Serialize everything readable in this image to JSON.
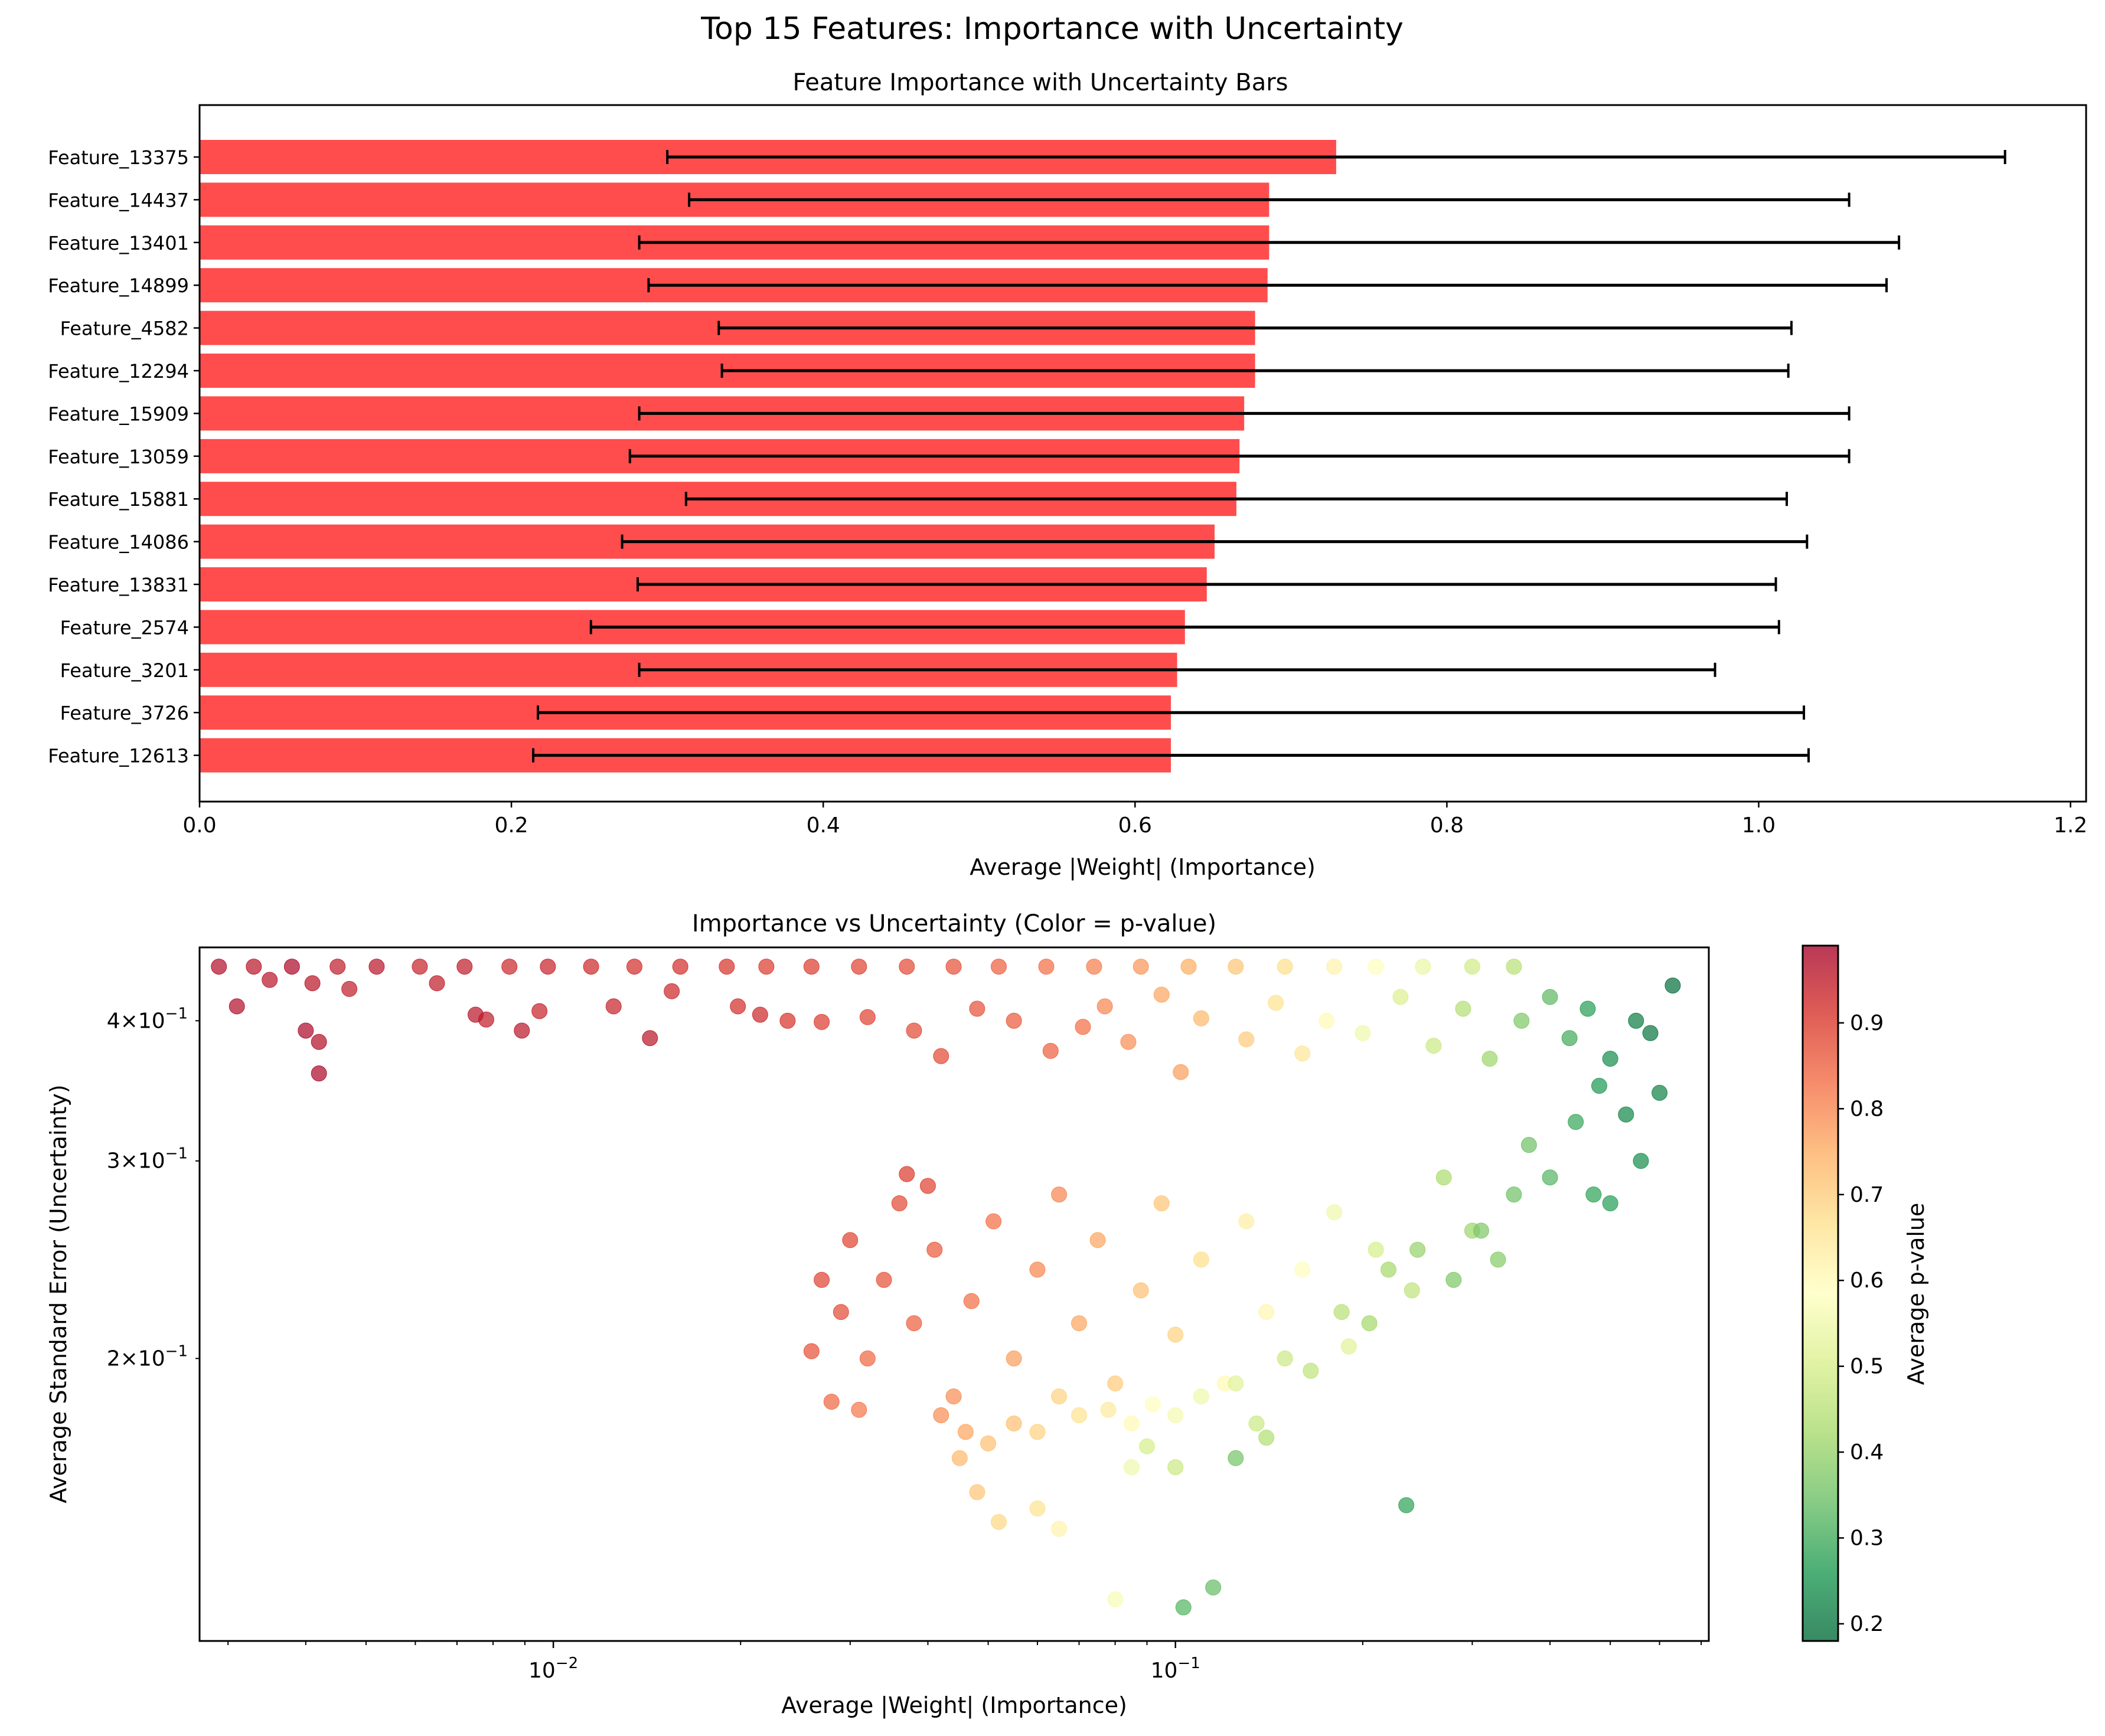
{
  "figure": {
    "suptitle": "Top 15 Features: Importance with Uncertainty"
  },
  "chart_data": [
    {
      "type": "bar",
      "orientation": "horizontal",
      "title": "Feature Importance with Uncertainty Bars",
      "xlabel": "Average |Weight| (Importance)",
      "ylabel": "",
      "xlim": [
        0,
        1.21
      ],
      "xticks": [
        "0.0",
        "0.2",
        "0.4",
        "0.6",
        "0.8",
        "1.0",
        "1.2"
      ],
      "bar_color": "#ff4d4d",
      "errorbar_color": "#000000",
      "categories": [
        "Feature_13375",
        "Feature_14437",
        "Feature_13401",
        "Feature_14899",
        "Feature_4582",
        "Feature_12294",
        "Feature_15909",
        "Feature_13059",
        "Feature_15881",
        "Feature_14086",
        "Feature_13831",
        "Feature_2574",
        "Feature_3201",
        "Feature_3726",
        "Feature_12613"
      ],
      "values": [
        0.729,
        0.686,
        0.686,
        0.685,
        0.677,
        0.677,
        0.67,
        0.667,
        0.665,
        0.651,
        0.646,
        0.632,
        0.627,
        0.623,
        0.623
      ],
      "errors": [
        0.429,
        0.372,
        0.404,
        0.397,
        0.344,
        0.342,
        0.388,
        0.391,
        0.353,
        0.38,
        0.365,
        0.381,
        0.345,
        0.406,
        0.409
      ]
    },
    {
      "type": "scatter",
      "title": "Importance vs Uncertainty (Color = p-value)",
      "xlabel": "Average |Weight| (Importance)",
      "ylabel": "Average Standard Error (Uncertainty)",
      "xscale": "log",
      "yscale": "log",
      "xlim": [
        0.0027,
        0.72
      ],
      "ylim": [
        0.112,
        0.465
      ],
      "xticks": [
        {
          "value": 0.01,
          "base": "10",
          "exp": "−2"
        },
        {
          "value": 0.1,
          "base": "10",
          "exp": "−1"
        }
      ],
      "yticks": [
        {
          "value": 0.2,
          "mant": "2×10",
          "exp": "−1"
        },
        {
          "value": 0.3,
          "mant": "3×10",
          "exp": "−1"
        },
        {
          "value": 0.4,
          "mant": "4×10",
          "exp": "−1"
        }
      ],
      "colormap": "RdYlGn_r",
      "colorbar_label": "Average p-value",
      "colorbar_range": [
        0.18,
        0.99
      ],
      "colorbar_ticks": [
        "0.2",
        "0.3",
        "0.4",
        "0.5",
        "0.6",
        "0.7",
        "0.8",
        "0.9"
      ],
      "marker_alpha": 0.7,
      "points": [
        {
          "x": 0.0029,
          "y": 0.447,
          "p": 0.97
        },
        {
          "x": 0.0033,
          "y": 0.447,
          "p": 0.96
        },
        {
          "x": 0.0038,
          "y": 0.447,
          "p": 0.98
        },
        {
          "x": 0.0045,
          "y": 0.447,
          "p": 0.95
        },
        {
          "x": 0.0052,
          "y": 0.447,
          "p": 0.96
        },
        {
          "x": 0.0061,
          "y": 0.447,
          "p": 0.94
        },
        {
          "x": 0.0072,
          "y": 0.447,
          "p": 0.95
        },
        {
          "x": 0.0085,
          "y": 0.447,
          "p": 0.93
        },
        {
          "x": 0.0098,
          "y": 0.447,
          "p": 0.94
        },
        {
          "x": 0.0115,
          "y": 0.447,
          "p": 0.93
        },
        {
          "x": 0.0135,
          "y": 0.447,
          "p": 0.92
        },
        {
          "x": 0.016,
          "y": 0.447,
          "p": 0.92
        },
        {
          "x": 0.019,
          "y": 0.447,
          "p": 0.91
        },
        {
          "x": 0.022,
          "y": 0.447,
          "p": 0.9
        },
        {
          "x": 0.026,
          "y": 0.447,
          "p": 0.9
        },
        {
          "x": 0.031,
          "y": 0.447,
          "p": 0.89
        },
        {
          "x": 0.037,
          "y": 0.447,
          "p": 0.88
        },
        {
          "x": 0.044,
          "y": 0.447,
          "p": 0.87
        },
        {
          "x": 0.052,
          "y": 0.447,
          "p": 0.85
        },
        {
          "x": 0.062,
          "y": 0.447,
          "p": 0.83
        },
        {
          "x": 0.074,
          "y": 0.447,
          "p": 0.81
        },
        {
          "x": 0.088,
          "y": 0.447,
          "p": 0.78
        },
        {
          "x": 0.105,
          "y": 0.447,
          "p": 0.75
        },
        {
          "x": 0.125,
          "y": 0.447,
          "p": 0.71
        },
        {
          "x": 0.15,
          "y": 0.447,
          "p": 0.67
        },
        {
          "x": 0.18,
          "y": 0.447,
          "p": 0.62
        },
        {
          "x": 0.21,
          "y": 0.447,
          "p": 0.58
        },
        {
          "x": 0.25,
          "y": 0.447,
          "p": 0.54
        },
        {
          "x": 0.3,
          "y": 0.447,
          "p": 0.49
        },
        {
          "x": 0.35,
          "y": 0.447,
          "p": 0.45
        },
        {
          "x": 0.0031,
          "y": 0.412,
          "p": 0.97
        },
        {
          "x": 0.0035,
          "y": 0.435,
          "p": 0.96
        },
        {
          "x": 0.004,
          "y": 0.392,
          "p": 0.98
        },
        {
          "x": 0.0041,
          "y": 0.432,
          "p": 0.96
        },
        {
          "x": 0.0042,
          "y": 0.383,
          "p": 0.97
        },
        {
          "x": 0.0042,
          "y": 0.359,
          "p": 0.98
        },
        {
          "x": 0.0047,
          "y": 0.427,
          "p": 0.95
        },
        {
          "x": 0.0065,
          "y": 0.432,
          "p": 0.95
        },
        {
          "x": 0.0075,
          "y": 0.405,
          "p": 0.96
        },
        {
          "x": 0.0078,
          "y": 0.401,
          "p": 0.95
        },
        {
          "x": 0.0089,
          "y": 0.392,
          "p": 0.96
        },
        {
          "x": 0.0095,
          "y": 0.408,
          "p": 0.94
        },
        {
          "x": 0.0125,
          "y": 0.412,
          "p": 0.94
        },
        {
          "x": 0.0143,
          "y": 0.386,
          "p": 0.96
        },
        {
          "x": 0.0155,
          "y": 0.425,
          "p": 0.93
        },
        {
          "x": 0.0198,
          "y": 0.412,
          "p": 0.92
        },
        {
          "x": 0.0215,
          "y": 0.405,
          "p": 0.93
        },
        {
          "x": 0.0238,
          "y": 0.4,
          "p": 0.91
        },
        {
          "x": 0.027,
          "y": 0.399,
          "p": 0.9
        },
        {
          "x": 0.032,
          "y": 0.403,
          "p": 0.89
        },
        {
          "x": 0.038,
          "y": 0.392,
          "p": 0.88
        },
        {
          "x": 0.042,
          "y": 0.372,
          "p": 0.88
        },
        {
          "x": 0.048,
          "y": 0.41,
          "p": 0.87
        },
        {
          "x": 0.055,
          "y": 0.4,
          "p": 0.86
        },
        {
          "x": 0.063,
          "y": 0.376,
          "p": 0.85
        },
        {
          "x": 0.071,
          "y": 0.395,
          "p": 0.83
        },
        {
          "x": 0.077,
          "y": 0.412,
          "p": 0.8
        },
        {
          "x": 0.084,
          "y": 0.383,
          "p": 0.79
        },
        {
          "x": 0.095,
          "y": 0.422,
          "p": 0.76
        },
        {
          "x": 0.102,
          "y": 0.36,
          "p": 0.77
        },
        {
          "x": 0.11,
          "y": 0.402,
          "p": 0.73
        },
        {
          "x": 0.13,
          "y": 0.385,
          "p": 0.7
        },
        {
          "x": 0.145,
          "y": 0.415,
          "p": 0.66
        },
        {
          "x": 0.16,
          "y": 0.374,
          "p": 0.65
        },
        {
          "x": 0.175,
          "y": 0.4,
          "p": 0.6
        },
        {
          "x": 0.2,
          "y": 0.39,
          "p": 0.55
        },
        {
          "x": 0.23,
          "y": 0.42,
          "p": 0.51
        },
        {
          "x": 0.26,
          "y": 0.38,
          "p": 0.48
        },
        {
          "x": 0.29,
          "y": 0.41,
          "p": 0.44
        },
        {
          "x": 0.32,
          "y": 0.37,
          "p": 0.41
        },
        {
          "x": 0.36,
          "y": 0.4,
          "p": 0.37
        },
        {
          "x": 0.4,
          "y": 0.42,
          "p": 0.33
        },
        {
          "x": 0.43,
          "y": 0.386,
          "p": 0.3
        },
        {
          "x": 0.46,
          "y": 0.41,
          "p": 0.27
        },
        {
          "x": 0.5,
          "y": 0.37,
          "p": 0.24
        },
        {
          "x": 0.55,
          "y": 0.4,
          "p": 0.21
        },
        {
          "x": 0.63,
          "y": 0.43,
          "p": 0.19
        },
        {
          "x": 0.58,
          "y": 0.39,
          "p": 0.2
        },
        {
          "x": 0.6,
          "y": 0.345,
          "p": 0.22
        },
        {
          "x": 0.53,
          "y": 0.33,
          "p": 0.23
        },
        {
          "x": 0.48,
          "y": 0.35,
          "p": 0.26
        },
        {
          "x": 0.44,
          "y": 0.325,
          "p": 0.29
        },
        {
          "x": 0.47,
          "y": 0.28,
          "p": 0.28
        },
        {
          "x": 0.5,
          "y": 0.275,
          "p": 0.27
        },
        {
          "x": 0.56,
          "y": 0.3,
          "p": 0.24
        },
        {
          "x": 0.4,
          "y": 0.29,
          "p": 0.32
        },
        {
          "x": 0.37,
          "y": 0.31,
          "p": 0.35
        },
        {
          "x": 0.33,
          "y": 0.245,
          "p": 0.38
        },
        {
          "x": 0.3,
          "y": 0.26,
          "p": 0.41
        },
        {
          "x": 0.27,
          "y": 0.29,
          "p": 0.43
        },
        {
          "x": 0.24,
          "y": 0.23,
          "p": 0.46
        },
        {
          "x": 0.21,
          "y": 0.25,
          "p": 0.5
        },
        {
          "x": 0.19,
          "y": 0.205,
          "p": 0.52
        },
        {
          "x": 0.18,
          "y": 0.27,
          "p": 0.55
        },
        {
          "x": 0.16,
          "y": 0.24,
          "p": 0.58
        },
        {
          "x": 0.14,
          "y": 0.22,
          "p": 0.61
        },
        {
          "x": 0.13,
          "y": 0.265,
          "p": 0.63
        },
        {
          "x": 0.12,
          "y": 0.19,
          "p": 0.6
        },
        {
          "x": 0.11,
          "y": 0.245,
          "p": 0.67
        },
        {
          "x": 0.1,
          "y": 0.21,
          "p": 0.69
        },
        {
          "x": 0.095,
          "y": 0.275,
          "p": 0.71
        },
        {
          "x": 0.088,
          "y": 0.23,
          "p": 0.72
        },
        {
          "x": 0.08,
          "y": 0.19,
          "p": 0.7
        },
        {
          "x": 0.075,
          "y": 0.255,
          "p": 0.76
        },
        {
          "x": 0.07,
          "y": 0.215,
          "p": 0.76
        },
        {
          "x": 0.065,
          "y": 0.28,
          "p": 0.8
        },
        {
          "x": 0.06,
          "y": 0.24,
          "p": 0.8
        },
        {
          "x": 0.055,
          "y": 0.2,
          "p": 0.77
        },
        {
          "x": 0.051,
          "y": 0.265,
          "p": 0.83
        },
        {
          "x": 0.047,
          "y": 0.225,
          "p": 0.83
        },
        {
          "x": 0.044,
          "y": 0.185,
          "p": 0.79
        },
        {
          "x": 0.041,
          "y": 0.25,
          "p": 0.86
        },
        {
          "x": 0.038,
          "y": 0.215,
          "p": 0.85
        },
        {
          "x": 0.036,
          "y": 0.275,
          "p": 0.88
        },
        {
          "x": 0.034,
          "y": 0.235,
          "p": 0.87
        },
        {
          "x": 0.032,
          "y": 0.2,
          "p": 0.84
        },
        {
          "x": 0.03,
          "y": 0.255,
          "p": 0.89
        },
        {
          "x": 0.029,
          "y": 0.22,
          "p": 0.88
        },
        {
          "x": 0.027,
          "y": 0.235,
          "p": 0.89
        },
        {
          "x": 0.026,
          "y": 0.203,
          "p": 0.87
        },
        {
          "x": 0.028,
          "y": 0.183,
          "p": 0.84
        },
        {
          "x": 0.031,
          "y": 0.18,
          "p": 0.82
        },
        {
          "x": 0.037,
          "y": 0.292,
          "p": 0.9
        },
        {
          "x": 0.04,
          "y": 0.285,
          "p": 0.89
        },
        {
          "x": 0.042,
          "y": 0.178,
          "p": 0.79
        },
        {
          "x": 0.046,
          "y": 0.172,
          "p": 0.76
        },
        {
          "x": 0.05,
          "y": 0.168,
          "p": 0.72
        },
        {
          "x": 0.055,
          "y": 0.175,
          "p": 0.72
        },
        {
          "x": 0.06,
          "y": 0.172,
          "p": 0.69
        },
        {
          "x": 0.065,
          "y": 0.185,
          "p": 0.69
        },
        {
          "x": 0.07,
          "y": 0.178,
          "p": 0.66
        },
        {
          "x": 0.078,
          "y": 0.18,
          "p": 0.64
        },
        {
          "x": 0.085,
          "y": 0.175,
          "p": 0.6
        },
        {
          "x": 0.092,
          "y": 0.182,
          "p": 0.58
        },
        {
          "x": 0.1,
          "y": 0.178,
          "p": 0.56
        },
        {
          "x": 0.11,
          "y": 0.185,
          "p": 0.55
        },
        {
          "x": 0.125,
          "y": 0.19,
          "p": 0.52
        },
        {
          "x": 0.135,
          "y": 0.175,
          "p": 0.48
        },
        {
          "x": 0.15,
          "y": 0.2,
          "p": 0.48
        },
        {
          "x": 0.165,
          "y": 0.195,
          "p": 0.46
        },
        {
          "x": 0.185,
          "y": 0.22,
          "p": 0.45
        },
        {
          "x": 0.205,
          "y": 0.215,
          "p": 0.42
        },
        {
          "x": 0.22,
          "y": 0.24,
          "p": 0.42
        },
        {
          "x": 0.245,
          "y": 0.25,
          "p": 0.4
        },
        {
          "x": 0.28,
          "y": 0.235,
          "p": 0.37
        },
        {
          "x": 0.31,
          "y": 0.26,
          "p": 0.37
        },
        {
          "x": 0.35,
          "y": 0.28,
          "p": 0.35
        },
        {
          "x": 0.045,
          "y": 0.163,
          "p": 0.73
        },
        {
          "x": 0.048,
          "y": 0.152,
          "p": 0.71
        },
        {
          "x": 0.052,
          "y": 0.143,
          "p": 0.68
        },
        {
          "x": 0.06,
          "y": 0.147,
          "p": 0.66
        },
        {
          "x": 0.065,
          "y": 0.141,
          "p": 0.62
        },
        {
          "x": 0.08,
          "y": 0.122,
          "p": 0.57
        },
        {
          "x": 0.103,
          "y": 0.12,
          "p": 0.32
        },
        {
          "x": 0.115,
          "y": 0.125,
          "p": 0.34
        },
        {
          "x": 0.125,
          "y": 0.163,
          "p": 0.36
        },
        {
          "x": 0.235,
          "y": 0.148,
          "p": 0.28
        },
        {
          "x": 0.085,
          "y": 0.16,
          "p": 0.55
        },
        {
          "x": 0.09,
          "y": 0.167,
          "p": 0.5
        },
        {
          "x": 0.1,
          "y": 0.16,
          "p": 0.48
        },
        {
          "x": 0.14,
          "y": 0.17,
          "p": 0.44
        }
      ]
    }
  ]
}
